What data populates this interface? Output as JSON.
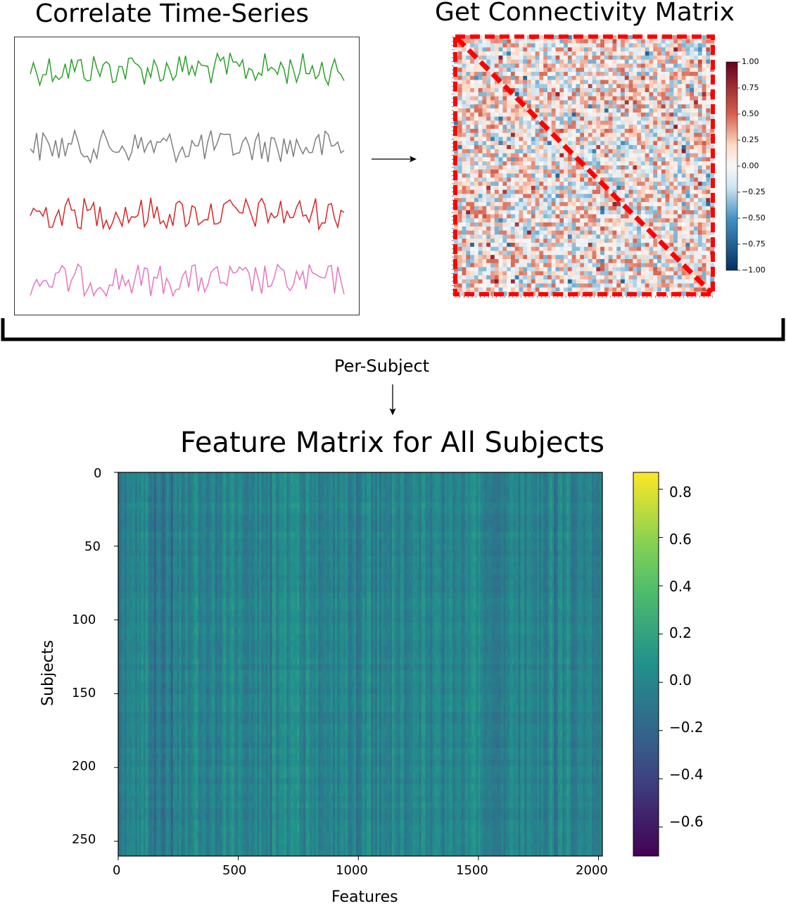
{
  "titles": {
    "timeseries": "Correlate Time-Series",
    "connectivity": "Get Connectivity Matrix",
    "feature": "Feature Matrix for All Subjects"
  },
  "per_subject_label": "Per-Subject",
  "timeseries_panel": {
    "series_colors": [
      "#2ca02c",
      "#7f7f7f",
      "#d62728",
      "#e377c2"
    ]
  },
  "connectivity_colorbar": {
    "ticks": [
      "1.00",
      "0.75",
      "0.50",
      "0.25",
      "0.00",
      "−0.25",
      "−0.50",
      "−0.75",
      "−1.00"
    ],
    "accent": "#ff0000"
  },
  "chart_data": {
    "type": "heatmap",
    "title": "Feature Matrix for All Subjects",
    "xlabel": "Features",
    "ylabel": "Subjects",
    "xlim": [
      0,
      2016
    ],
    "ylim": [
      260,
      0
    ],
    "xticks": [
      "0",
      "500",
      "1000",
      "1500",
      "2000"
    ],
    "yticks": [
      "0",
      "50",
      "100",
      "150",
      "200",
      "250"
    ],
    "colorbar": {
      "colormap": "viridis",
      "range": [
        -0.72,
        0.87
      ],
      "ticks": [
        "0.8",
        "0.6",
        "0.4",
        "0.2",
        "0.0",
        "−0.2",
        "−0.4",
        "−0.6"
      ]
    }
  }
}
